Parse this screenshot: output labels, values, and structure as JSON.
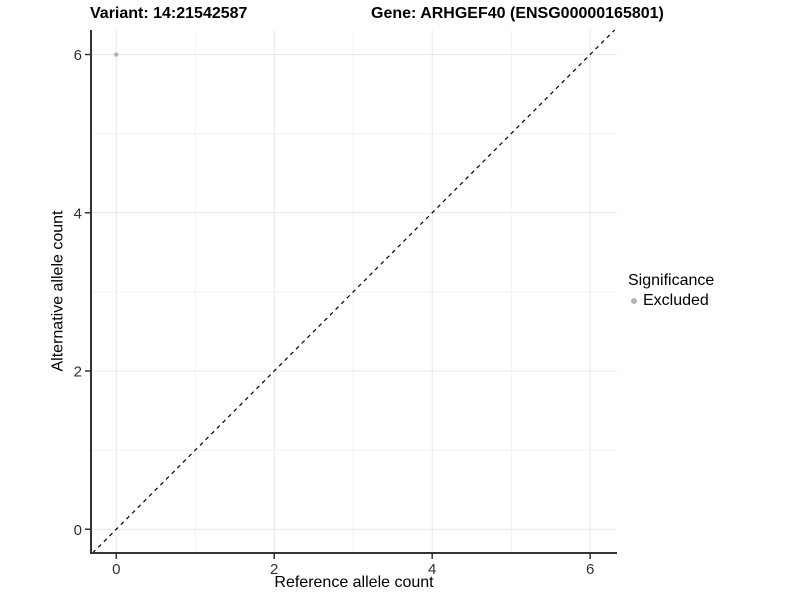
{
  "chart_data": {
    "type": "scatter",
    "title_left": "Variant: 14:21542587",
    "title_right": "Gene: ARHGEF40 (ENSG00000165801)",
    "xlabel": "Reference allele count",
    "ylabel": "Alternative allele count",
    "xlim": [
      -0.32,
      6.34
    ],
    "ylim": [
      -0.3,
      6.31
    ],
    "xticks": [
      0,
      2,
      4,
      6
    ],
    "yticks": [
      0,
      2,
      4,
      6
    ],
    "grid_x": [
      0,
      1,
      2,
      3,
      4,
      5,
      6
    ],
    "grid_y": [
      0,
      1,
      2,
      3,
      4,
      5,
      6
    ],
    "grid_on": true,
    "reference_line": {
      "type": "identity",
      "style": "dashed",
      "color": "#000000"
    },
    "series": [
      {
        "name": "Excluded",
        "color": "#b3b3b3",
        "marker": "circle",
        "points": [
          {
            "x": 0,
            "y": 6
          }
        ]
      }
    ],
    "legend": {
      "title": "Significance",
      "position": "right",
      "entries": [
        {
          "label": "Excluded",
          "color": "#b3b3b3"
        }
      ]
    },
    "colors": {
      "axis_line": "#333333",
      "grid_major": "#e8e8e8",
      "grid_minor": "#f2f2f2",
      "tick_label": "#303030",
      "background": "#ffffff"
    }
  }
}
